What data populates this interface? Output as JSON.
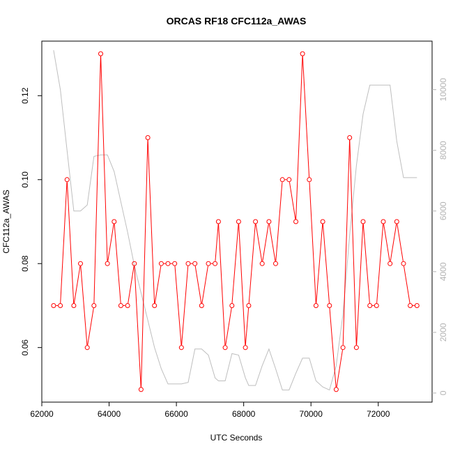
{
  "chart_data": {
    "type": "line",
    "title": "ORCAS RF18 CFC112a_AWAS",
    "xlabel": "UTC Seconds",
    "ylabel": "CFC112a_AWAS",
    "xlim": [
      62000,
      73600
    ],
    "ylim": [
      0.047,
      0.133
    ],
    "ylim_right": [
      -300,
      11600
    ],
    "x_ticks": [
      62000,
      64000,
      66000,
      68000,
      70000,
      72000
    ],
    "x_tick_labels": [
      "62000",
      "64000",
      "66000",
      "68000",
      "70000",
      "72000"
    ],
    "y_ticks": [
      0.06,
      0.08,
      0.1,
      0.12
    ],
    "y_tick_labels": [
      "0.06",
      "0.08",
      "0.10",
      "0.12"
    ],
    "y_right_ticks": [
      0,
      2000,
      4000,
      6000,
      8000,
      10000
    ],
    "y_right_tick_labels": [
      "0",
      "2000",
      "4000",
      "6000",
      "8000",
      "10000"
    ],
    "grid": false,
    "series": [
      {
        "color": "#ff0000",
        "marker": "open-circle",
        "x": [
          62350,
          62550,
          62750,
          62950,
          63150,
          63350,
          63550,
          63750,
          63950,
          64150,
          64350,
          64550,
          64750,
          64950,
          65150,
          65350,
          65550,
          65750,
          65950,
          66150,
          66350,
          66550,
          66750,
          66950,
          67150,
          67250,
          67450,
          67650,
          67850,
          68050,
          68150,
          68350,
          68550,
          68750,
          68950,
          69150,
          69350,
          69550,
          69750,
          69950,
          70150,
          70350,
          70550,
          70750,
          70950,
          71150,
          71350,
          71550,
          71750,
          71950,
          72150,
          72350,
          72550,
          72750,
          72950,
          73150
        ],
        "y": [
          0.07,
          0.07,
          0.1,
          0.07,
          0.08,
          0.06,
          0.07,
          0.13,
          0.08,
          0.09,
          0.07,
          0.07,
          0.08,
          0.05,
          0.11,
          0.07,
          0.08,
          0.08,
          0.08,
          0.06,
          0.08,
          0.08,
          0.07,
          0.08,
          0.08,
          0.09,
          0.06,
          0.07,
          0.09,
          0.06,
          0.07,
          0.09,
          0.08,
          0.09,
          0.08,
          0.1,
          0.1,
          0.09,
          0.13,
          0.1,
          0.07,
          0.09,
          0.07,
          0.05,
          0.06,
          0.11,
          0.06,
          0.09,
          0.07,
          0.07,
          0.09,
          0.08,
          0.09,
          0.08,
          0.07,
          0.07
        ]
      },
      {
        "color": "#bebebe",
        "axis": "right",
        "x": [
          62350,
          62550,
          62750,
          62950,
          63150,
          63350,
          63550,
          63750,
          63950,
          64150,
          64350,
          64550,
          64750,
          64950,
          65150,
          65350,
          65550,
          65750,
          65950,
          66150,
          66350,
          66550,
          66750,
          66950,
          67150,
          67250,
          67450,
          67650,
          67850,
          68050,
          68150,
          68350,
          68550,
          68750,
          68950,
          69150,
          69350,
          69550,
          69750,
          69950,
          70150,
          70350,
          70550,
          70750,
          70950,
          71150,
          71350,
          71550,
          71750,
          71950,
          72150,
          72350,
          72550,
          72750,
          72950,
          73150
        ],
        "y": [
          11300,
          10000,
          8000,
          6000,
          6000,
          6200,
          7800,
          7850,
          7850,
          7300,
          6300,
          5300,
          4200,
          3300,
          2400,
          1500,
          800,
          300,
          300,
          300,
          350,
          1450,
          1450,
          1250,
          500,
          400,
          400,
          1300,
          1250,
          500,
          250,
          250,
          900,
          1450,
          800,
          100,
          100,
          650,
          1150,
          1150,
          400,
          200,
          100,
          900,
          2600,
          5200,
          7500,
          9200,
          10150,
          10150,
          10150,
          10150,
          8300,
          7100,
          7100,
          7100
        ]
      }
    ]
  }
}
